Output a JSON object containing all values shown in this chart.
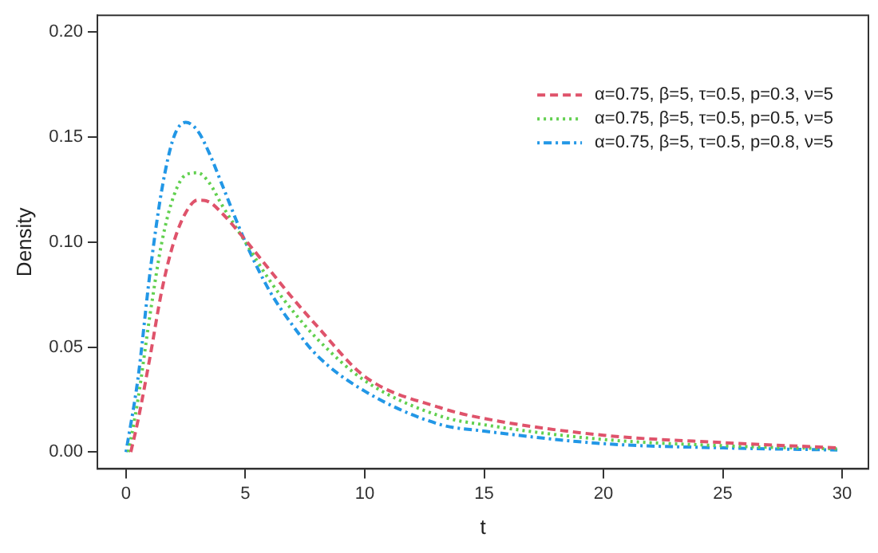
{
  "chart_data": {
    "type": "line",
    "xlabel": "t",
    "ylabel": "Density",
    "x": [
      0.2,
      0.5,
      1,
      1.5,
      2,
      2.5,
      3,
      3.5,
      4,
      5,
      6,
      7,
      8,
      10,
      13.2,
      15,
      20,
      25,
      29.8
    ],
    "series": [
      {
        "name": "α=0.75, β=5, τ=0.5, p=0.3, ν=5",
        "color": "#df536b",
        "line_style": "dashed",
        "values": [
          0,
          0.015,
          0.045,
          0.077,
          0.1,
          0.114,
          0.12,
          0.119,
          0.114,
          0.101,
          0.087,
          0.073,
          0.06,
          0.036,
          0.021,
          0.016,
          0.008,
          0.0045,
          0.002
        ]
      },
      {
        "name": "α=0.75, β=5, τ=0.5, p=0.5, ν=5",
        "color": "#61d04f",
        "line_style": "dotted",
        "x": [
          0.1,
          0.5,
          1,
          1.5,
          2,
          2.5,
          3,
          3.5,
          4,
          5,
          6,
          7,
          8,
          10,
          13.2,
          15,
          20,
          25,
          29.8
        ],
        "values": [
          0,
          0.025,
          0.065,
          0.1,
          0.122,
          0.132,
          0.133,
          0.128,
          0.118,
          0.1,
          0.082,
          0.067,
          0.054,
          0.034,
          0.017,
          0.013,
          0.006,
          0.003,
          0.0015
        ]
      },
      {
        "name": "α=0.75, β=5, τ=0.5, p=0.8, ν=5",
        "color": "#2297e6",
        "line_style": "dashdot",
        "x": [
          0,
          0.5,
          1,
          1.5,
          2,
          2.5,
          3,
          3.5,
          4,
          5,
          6,
          7,
          8,
          10,
          13.2,
          15,
          20,
          25,
          29.8
        ],
        "values": [
          0,
          0.035,
          0.085,
          0.125,
          0.15,
          0.157,
          0.153,
          0.142,
          0.128,
          0.1,
          0.077,
          0.06,
          0.046,
          0.029,
          0.013,
          0.01,
          0.004,
          0.002,
          0.001
        ]
      }
    ],
    "xlim": [
      -1.2,
      31.1
    ],
    "xticks": [
      0,
      5,
      10,
      15,
      20,
      25,
      30
    ],
    "ylim": [
      -0.008,
      0.208
    ],
    "yticks": [
      {
        "value": 0,
        "label": "0.00"
      },
      {
        "value": 0.05,
        "label": "0.05"
      },
      {
        "value": 0.1,
        "label": "0.10"
      },
      {
        "value": 0.15,
        "label": "0.15"
      },
      {
        "value": 0.2,
        "label": "0.20"
      }
    ],
    "legend": "top right",
    "grid": false
  }
}
